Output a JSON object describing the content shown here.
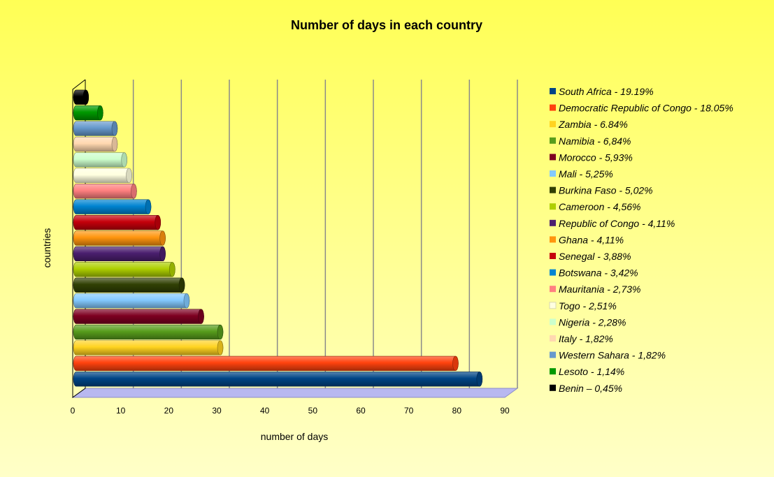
{
  "chart_data": {
    "type": "bar",
    "orientation": "horizontal",
    "style": "3d-cylinder",
    "title": "Number of days in each country",
    "xlabel": "number of days",
    "ylabel": "countries",
    "xlim": [
      0,
      90
    ],
    "x_ticks": [
      "0",
      "10",
      "20",
      "30",
      "40",
      "50",
      "60",
      "70",
      "80",
      "90"
    ],
    "grid": "vertical",
    "legend_position": "right",
    "categories": [
      "South Africa",
      "Democratic Republic of Congo",
      "Zambia",
      "Namibia",
      "Morocco",
      "Mali",
      "Burkina Faso",
      "Cameroon",
      "Republic of Congo",
      "Ghana",
      "Senegal",
      "Botswana",
      "Mauritania",
      "Togo",
      "Nigeria",
      "Italy",
      "Western Sahara",
      "Lesoto",
      "Benin"
    ],
    "values": [
      84,
      79,
      30,
      30,
      26,
      23,
      22,
      20,
      18,
      18,
      17,
      15,
      12,
      11,
      10,
      8,
      8,
      5,
      2
    ],
    "colors": [
      "#004586",
      "#ff420e",
      "#ffd320",
      "#579d1c",
      "#7e0021",
      "#83caff",
      "#314004",
      "#aecf00",
      "#4b1f6f",
      "#ff950e",
      "#c5000b",
      "#0084d1",
      "#ff8080",
      "#ffffe0",
      "#ccffcc",
      "#ffd8b0",
      "#6699cc",
      "#009900",
      "#000000"
    ],
    "legend": [
      "South Africa - 19.19%",
      "Democratic Republic of Congo - 18.05%",
      "Zambia - 6.84%",
      "Namibia - 6,84%",
      "Morocco - 5,93%",
      "Mali - 5,25%",
      "Burkina Faso - 5,02%",
      "Cameroon - 4,56%",
      "Republic of Congo - 4,11%",
      "Ghana - 4,11%",
      "Senegal - 3,88%",
      "Botswana - 3,42%",
      "Mauritania - 2,73%",
      "Togo - 2,51%",
      "Nigeria - 2,28%",
      "Italy - 1,82%",
      "Western Sahara - 1,82%",
      "Lesoto - 1,14%",
      "Benin – 0,45%"
    ]
  }
}
